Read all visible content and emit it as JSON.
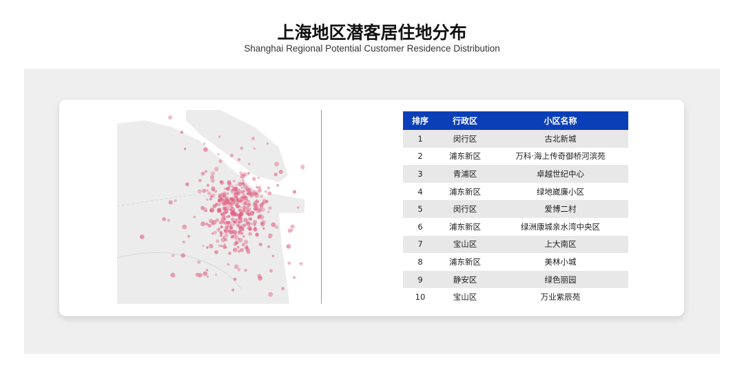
{
  "title": "上海地区潜客居住地分布",
  "subtitle": "Shanghai Regional Potential Customer Residence Distribution",
  "colors": {
    "header": "#0b3fb8",
    "dots": "#e0607f",
    "panel": "#efefef"
  },
  "table": {
    "headers": [
      "排序",
      "行政区",
      "小区名称"
    ],
    "rows": [
      [
        "1",
        "闵行区",
        "古北新城"
      ],
      [
        "2",
        "浦东新区",
        "万科·海上传奇御桥河滨苑"
      ],
      [
        "3",
        "青浦区",
        "卓越世纪中心"
      ],
      [
        "4",
        "浦东新区",
        "绿地崴廉小区"
      ],
      [
        "5",
        "闵行区",
        "爱博二村"
      ],
      [
        "6",
        "浦东新区",
        "绿洲康城亲水湾中央区"
      ],
      [
        "7",
        "宝山区",
        "上大南区"
      ],
      [
        "8",
        "浦东新区",
        "美林小城"
      ],
      [
        "9",
        "静安区",
        "绿色丽园"
      ],
      [
        "10",
        "宝山区",
        "万业紫辰苑"
      ]
    ]
  }
}
